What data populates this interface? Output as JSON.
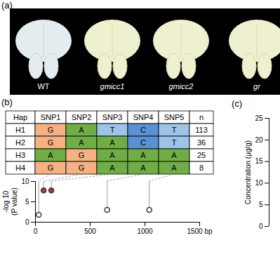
{
  "figure": {
    "panel_labels": [
      "(a)",
      "(b)",
      "(c)"
    ],
    "photos": {
      "labels": [
        "WT",
        "gmicc1",
        "gmicc2",
        "gr"
      ]
    },
    "table": {
      "header": [
        "Hap",
        "SNP1",
        "SNP2",
        "SNP3",
        "SNP4",
        "SNP5",
        "n"
      ],
      "rows": [
        [
          "H1",
          "G",
          "A",
          "T",
          "C",
          "T",
          113
        ],
        [
          "H2",
          "G",
          "A",
          "A",
          "C",
          "T",
          36
        ],
        [
          "H3",
          "A",
          "G",
          "A",
          "A",
          "A",
          25
        ],
        [
          "H4",
          "G",
          "G",
          "A",
          "A",
          "A",
          8
        ]
      ],
      "allele_colors": {
        "G": "#f4b183",
        "A": "#70ad47",
        "T": "#9dc3e6",
        "C": "#5b8fd6"
      }
    }
  },
  "chart_data": [
    {
      "type": "scatter",
      "y_label": "-log 10 (P value)",
      "x": [
        30,
        75,
        145,
        655,
        1040
      ],
      "values": [
        1.8,
        7.8,
        7.8,
        3,
        3
      ],
      "colors": [
        "#ffffff",
        "#c0392b",
        "#c0392b",
        "#ffffff",
        "#ffffff"
      ],
      "marker": "circle",
      "xlim": [
        0,
        1500
      ],
      "xticks": [
        0,
        500,
        1000,
        {
          "value": 1500,
          "label": "1500 bp"
        }
      ],
      "ylim": [
        0,
        10
      ],
      "yticks": [
        0,
        5,
        10
      ]
    },
    {
      "type": "bar",
      "y_label": "Concentration (μg/g)",
      "categories": [],
      "values": [],
      "ylim": [
        0,
        25
      ],
      "yticks": [
        0,
        5,
        10,
        15,
        20,
        25
      ]
    }
  ]
}
